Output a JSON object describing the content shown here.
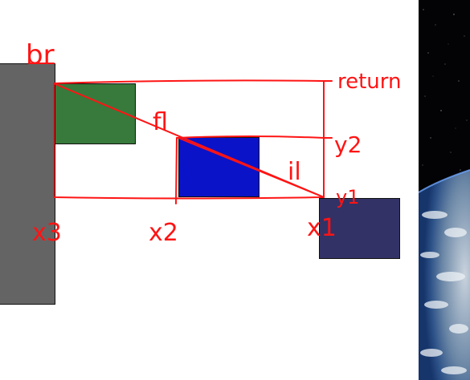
{
  "diagram": {
    "annotations": {
      "br": "br",
      "fl": "fl",
      "il": "il",
      "return": "return",
      "y1": "y1",
      "y2": "y2",
      "x1": "x1",
      "x2": "x2",
      "x3": "x3"
    },
    "colors": {
      "ink": "#ff1414",
      "gray_block": "#646464",
      "green_block": "#377a3c",
      "blue_block": "#0b13c8",
      "navy_block": "#323266"
    }
  }
}
